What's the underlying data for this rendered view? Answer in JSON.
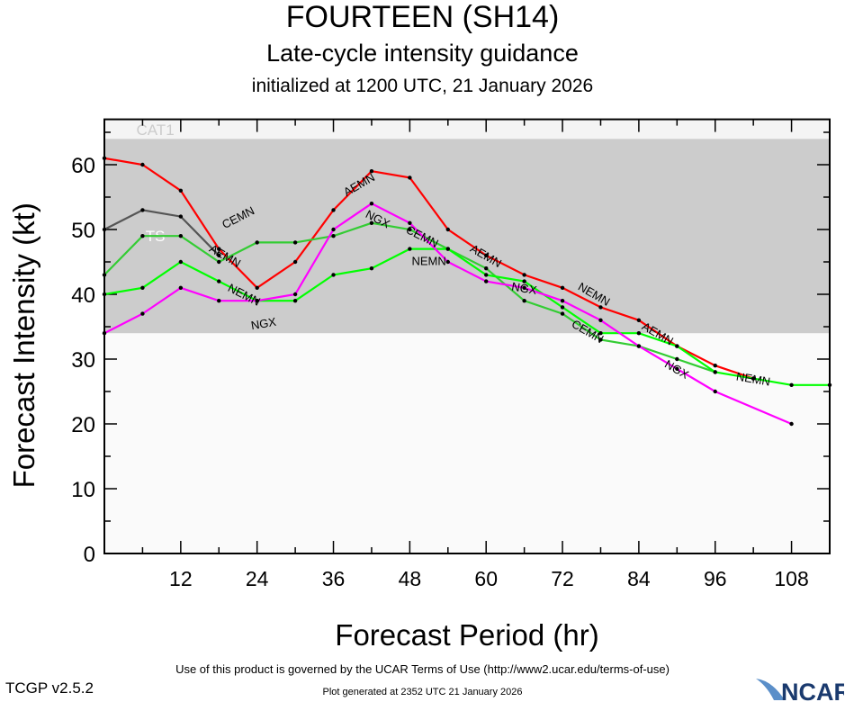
{
  "chart_data": {
    "type": "line",
    "title": "FOURTEEN (SH14)",
    "subtitle": "Late-cycle intensity guidance",
    "initialized": "initialized at 1200 UTC, 21 January 2026",
    "xlabel": "Forecast Period (hr)",
    "ylabel": "Forecast Intensity (kt)",
    "xlim": [
      0,
      114
    ],
    "ylim": [
      0,
      67
    ],
    "xticks": [
      12,
      24,
      36,
      48,
      60,
      72,
      84,
      96,
      108
    ],
    "yticks": [
      0,
      10,
      20,
      30,
      40,
      50,
      60
    ],
    "bands": [
      {
        "label": "TS",
        "from": 34,
        "to": 64,
        "color": "#cccccc",
        "label_color": "#ffffff",
        "label_x": 8,
        "label_y": 49
      },
      {
        "label": "CAT1",
        "from": 64,
        "to": 67,
        "color": "#f4f4f4",
        "label_color": "#cccccc",
        "label_x": 8,
        "label_y": 65.4
      }
    ],
    "below_band_color": "#fafafa",
    "series": [
      {
        "name": "AEMN",
        "color": "#ff0000",
        "x": [
          0,
          6,
          12,
          18,
          24,
          30,
          36,
          42,
          48,
          54,
          60,
          66,
          72,
          78,
          84,
          90,
          96,
          102
        ],
        "values": [
          61,
          60,
          56,
          47,
          41,
          45,
          53,
          59,
          58,
          50,
          46,
          43,
          41,
          38,
          36,
          32,
          29,
          27
        ]
      },
      {
        "color": "#555555",
        "x": [
          0,
          6,
          12,
          18
        ],
        "values": [
          50,
          53,
          52,
          46
        ]
      },
      {
        "name": "CEMN",
        "color": "#33cc33",
        "x": [
          0,
          6,
          12,
          18,
          24,
          30,
          36,
          42,
          48,
          54,
          60,
          66,
          72,
          78,
          84,
          90,
          96
        ],
        "values": [
          43,
          49,
          49,
          45,
          48,
          48,
          49,
          51,
          50,
          47,
          44,
          39,
          37,
          33,
          32,
          30,
          28
        ]
      },
      {
        "name": "NEMN",
        "color": "#00ff00",
        "x": [
          0,
          6,
          12,
          18,
          24,
          30,
          36,
          42,
          48,
          54,
          60,
          66,
          72,
          78,
          84,
          90,
          96,
          102,
          108,
          114
        ],
        "values": [
          40,
          41,
          45,
          42,
          39,
          39,
          43,
          44,
          47,
          47,
          43,
          42,
          38,
          34,
          34,
          32,
          28,
          27,
          26,
          26
        ]
      },
      {
        "name": "NGX",
        "color": "#ff00ff",
        "x": [
          0,
          6,
          12,
          18,
          24,
          30,
          36,
          42,
          48,
          54,
          60,
          66,
          72,
          78,
          84,
          90,
          96,
          108
        ],
        "values": [
          34,
          37,
          41,
          39,
          39,
          40,
          50,
          54,
          51,
          45,
          42,
          41,
          39,
          36,
          32,
          28.5,
          25,
          20
        ]
      }
    ],
    "line_labels": [
      {
        "text": "AEMN",
        "series": 0,
        "x": 19
      },
      {
        "text": "AEMN",
        "series": 0,
        "x": 40
      },
      {
        "text": "AEMN",
        "series": 0,
        "x": 60
      },
      {
        "text": "AEMN",
        "series": 0,
        "x": 87
      },
      {
        "text": "CEMN",
        "series": 2,
        "x": 21
      },
      {
        "text": "CEMN",
        "series": 2,
        "x": 50
      },
      {
        "text": "CEMN",
        "series": 2,
        "x": 76
      },
      {
        "text": "NEMN",
        "series": 3,
        "x": 22
      },
      {
        "text": "NEMN",
        "series": 3,
        "x": 51
      },
      {
        "text": "NEMN",
        "series": 3,
        "x": 77
      },
      {
        "text": "NEMN",
        "series": 3,
        "x": 102
      },
      {
        "text": "NGX",
        "series": 4,
        "x": 25
      },
      {
        "text": "NGX",
        "series": 4,
        "x": 43
      },
      {
        "text": "NGX",
        "series": 4,
        "x": 66
      },
      {
        "text": "NGX",
        "series": 4,
        "x": 90
      }
    ]
  },
  "footer": {
    "terms": "Use of this product is governed by the UCAR Terms of Use (http://www2.ucar.edu/terms-of-use)",
    "version": "TCGP v2.5.2",
    "generated": "Plot generated at 2352 UTC   21 January 2026",
    "logo": "NCAR"
  }
}
